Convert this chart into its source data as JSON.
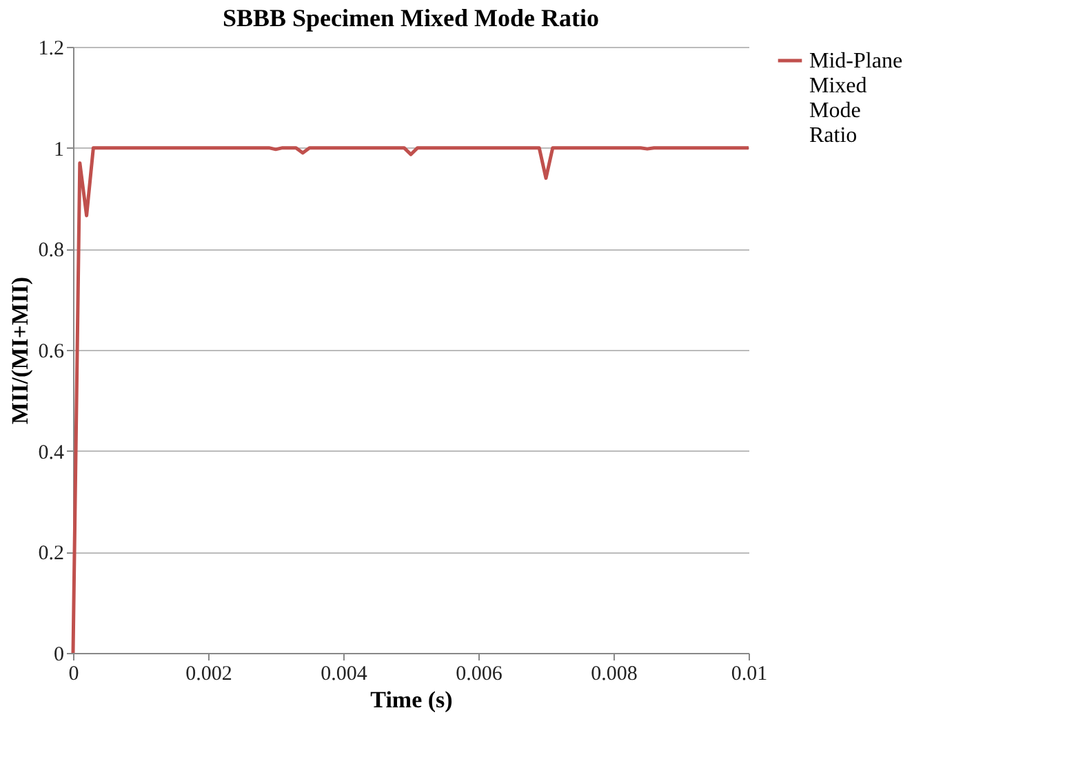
{
  "chart_data": {
    "type": "line",
    "title": "SBBB Specimen Mixed Mode Ratio",
    "xlabel": "Time (s)",
    "ylabel": "MII/(MI+MII)",
    "series": [
      {
        "name": "Mid-Plane Mixed Mode Ratio",
        "color": "#c0504d",
        "x": [
          0,
          0.0001,
          0.0002,
          0.0003,
          0.0029,
          0.003,
          0.0031,
          0.0033,
          0.0034,
          0.0035,
          0.0049,
          0.005,
          0.0051,
          0.0069,
          0.007,
          0.0071,
          0.0084,
          0.0085,
          0.0086,
          0.01
        ],
        "values": [
          0,
          0.97,
          0.866,
          1,
          1,
          0.997,
          1,
          1,
          0.99,
          1,
          1,
          0.987,
          1,
          1,
          0.94,
          1,
          1,
          0.998,
          1,
          1
        ]
      }
    ],
    "xlim": [
      0,
      0.01
    ],
    "xticks": [
      0,
      0.002,
      0.004,
      0.006,
      0.008,
      0.01
    ],
    "ylim": [
      0,
      1.2
    ],
    "yticks": [
      0,
      0.2,
      0.4,
      0.6,
      0.8,
      1,
      1.2
    ],
    "grid": "y",
    "legend": "right",
    "line_style": "solid",
    "marker": "none"
  }
}
